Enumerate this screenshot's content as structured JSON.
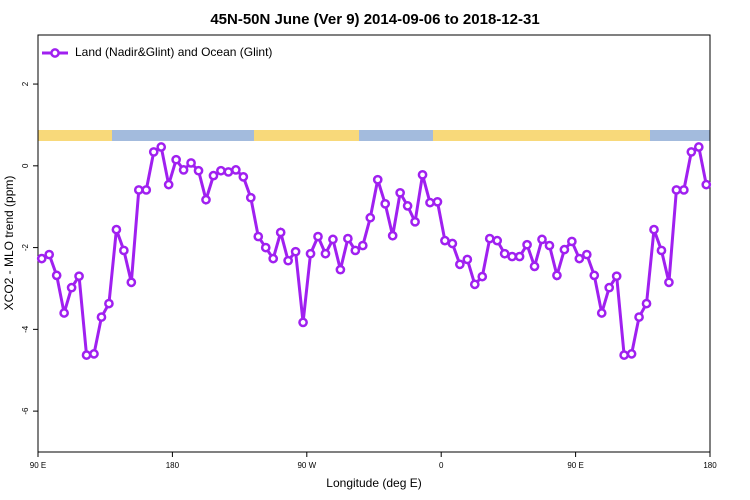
{
  "chart_data": {
    "type": "line",
    "title": "45N-50N June (Ver 9)   2014-09-06 to 2018-12-31",
    "xlabel": "Longitude (deg E)",
    "ylabel": "XCO2 - MLO trend (ppm)",
    "x": [
      92.5,
      97.5,
      102.5,
      107.5,
      112.5,
      117.5,
      122.5,
      127.5,
      132.5,
      137.5,
      142.5,
      147.5,
      152.5,
      157.5,
      162.5,
      167.5,
      172.5,
      177.5,
      182.5,
      187.5,
      192.5,
      197.5,
      202.5,
      207.5,
      212.5,
      217.5,
      222.5,
      227.5,
      232.5,
      237.5,
      242.5,
      247.5,
      252.5,
      257.5,
      262.5,
      267.5,
      272.5,
      277.5,
      282.5,
      287.5,
      292.5,
      297.5,
      302.5,
      307.5,
      312.5,
      317.5,
      322.5,
      327.5,
      332.5,
      337.5,
      342.5,
      347.5,
      352.5,
      357.5,
      362.5,
      367.5,
      372.5,
      377.5,
      382.5,
      387.5,
      392.5,
      397.5,
      402.5,
      407.5,
      412.5,
      417.5,
      422.5,
      427.5,
      432.5,
      437.5,
      442.5,
      447.5,
      452.5,
      457.5,
      462.5,
      467.5,
      472.5,
      477.5,
      482.5,
      487.5,
      492.5,
      497.5,
      502.5,
      507.5,
      512.5,
      517.5,
      522.5,
      527.5,
      532.5,
      537.5
    ],
    "series": [
      {
        "name": "Land (Nadir&Glint) and Ocean (Glint)",
        "color": "#a020f0",
        "values": [
          -2.27,
          -2.17,
          -2.68,
          -3.6,
          -2.98,
          -2.7,
          -4.63,
          -4.6,
          -3.7,
          -3.37,
          -1.56,
          -2.07,
          -2.85,
          -0.59,
          -0.59,
          0.34,
          0.46,
          -0.46,
          0.15,
          -0.1,
          0.07,
          -0.12,
          -0.83,
          -0.24,
          -0.12,
          -0.15,
          -0.1,
          -0.27,
          -0.78,
          -1.73,
          -2.0,
          -2.27,
          -1.63,
          -2.32,
          -2.1,
          -3.83,
          -2.15,
          -1.73,
          -2.15,
          -1.8,
          -2.54,
          -1.78,
          -2.07,
          -1.95,
          -1.27,
          -0.34,
          -0.93,
          -1.71,
          -0.66,
          -0.98,
          -1.37,
          -0.22,
          -0.9,
          -0.88,
          -1.83,
          -1.9,
          -2.41,
          -2.29,
          -2.9,
          -2.71,
          -1.78,
          -1.83,
          -2.15,
          -2.22,
          -2.22,
          -1.93,
          -2.46,
          -1.8,
          -1.95,
          -2.68,
          -2.05,
          -1.85,
          -2.27,
          -2.17,
          -2.68,
          -3.6,
          -2.98,
          -2.7,
          -4.63,
          -4.6,
          -3.7,
          -3.37,
          -1.56,
          -2.07,
          -2.85,
          -0.59,
          -0.59,
          0.34,
          0.46,
          -0.46
        ]
      }
    ],
    "xlim": [
      90,
      540
    ],
    "xticks": [
      {
        "value": 90,
        "label": "90 E"
      },
      180,
      {
        "value": 270,
        "label": "90 W"
      },
      {
        "value": 360,
        "label": "0"
      },
      {
        "value": 450,
        "label": "90 E"
      },
      {
        "value": 540,
        "label": "180"
      }
    ],
    "ylim": [
      -7.0,
      3.2
    ],
    "yticks": [
      -6,
      -4,
      -2,
      0,
      2
    ],
    "legend": "top-left"
  }
}
